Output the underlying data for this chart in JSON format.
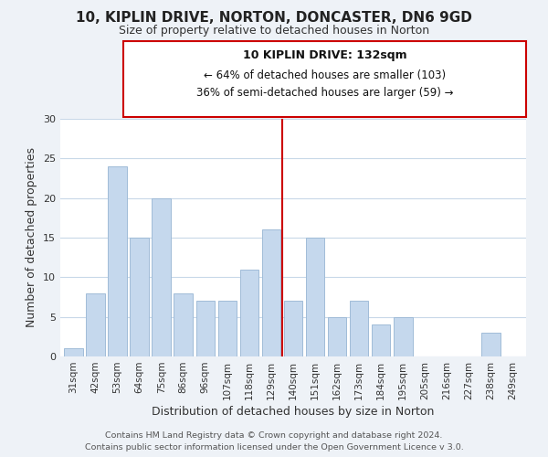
{
  "title": "10, KIPLIN DRIVE, NORTON, DONCASTER, DN6 9GD",
  "subtitle": "Size of property relative to detached houses in Norton",
  "xlabel": "Distribution of detached houses by size in Norton",
  "ylabel": "Number of detached properties",
  "categories": [
    "31sqm",
    "42sqm",
    "53sqm",
    "64sqm",
    "75sqm",
    "86sqm",
    "96sqm",
    "107sqm",
    "118sqm",
    "129sqm",
    "140sqm",
    "151sqm",
    "162sqm",
    "173sqm",
    "184sqm",
    "195sqm",
    "205sqm",
    "216sqm",
    "227sqm",
    "238sqm",
    "249sqm"
  ],
  "values": [
    1,
    8,
    24,
    15,
    20,
    8,
    7,
    7,
    11,
    16,
    7,
    15,
    5,
    7,
    4,
    5,
    0,
    0,
    0,
    3,
    0
  ],
  "bar_color": "#c5d8ed",
  "bar_edge_color": "#a0bcd8",
  "highlight_index": 9,
  "highlight_line_color": "#cc0000",
  "ylim": [
    0,
    30
  ],
  "yticks": [
    0,
    5,
    10,
    15,
    20,
    25,
    30
  ],
  "annotation_title": "10 KIPLIN DRIVE: 132sqm",
  "annotation_line1": "← 64% of detached houses are smaller (103)",
  "annotation_line2": "36% of semi-detached houses are larger (59) →",
  "annotation_box_color": "#ffffff",
  "annotation_box_edge": "#cc0000",
  "footer1": "Contains HM Land Registry data © Crown copyright and database right 2024.",
  "footer2": "Contains public sector information licensed under the Open Government Licence v 3.0.",
  "background_color": "#eef2f7",
  "plot_background_color": "#ffffff",
  "grid_color": "#c8d8e8"
}
